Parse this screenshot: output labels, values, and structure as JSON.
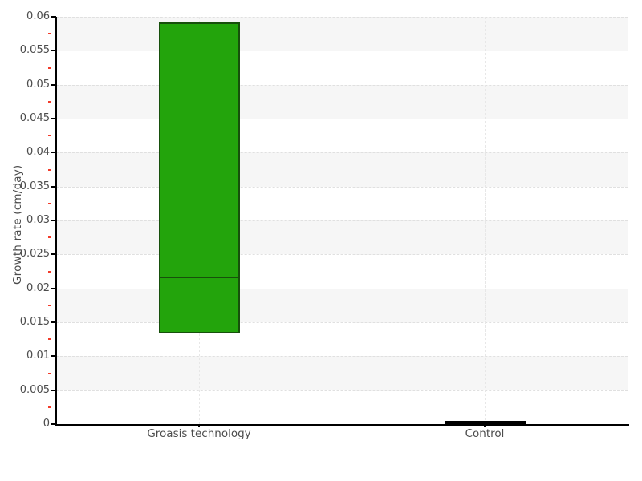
{
  "chart_data": {
    "type": "box",
    "title": "",
    "xlabel": "",
    "ylabel": "Growth rate (cm/day)",
    "ylim": [
      0,
      0.06
    ],
    "y_major_step": 0.005,
    "y_minor_step": 0.0025,
    "y_tick_labels": [
      "0",
      "0.005",
      "0.01",
      "0.015",
      "0.02",
      "0.025",
      "0.03",
      "0.035",
      "0.04",
      "0.045",
      "0.05",
      "0.055",
      "0.06"
    ],
    "categories": [
      "Groasis technology",
      "Control"
    ],
    "series": [
      {
        "category": "Groasis technology",
        "box_low": 0.0134,
        "box_high": 0.0592,
        "median": 0.0216,
        "fill": "#23a40c",
        "border": "#17500c"
      },
      {
        "category": "Control",
        "box_low": 0.0,
        "box_high": 0.0005,
        "median": 0.0002,
        "fill": "#000000",
        "border": "#000000"
      }
    ],
    "legend": null,
    "grid": "horizontal dashed lines every 0.005 with alternating light-gray bands; dashed vertical line at each category",
    "minor_tick_color": "#f23b2a"
  },
  "colors": {
    "background": "#ffffff",
    "band": "#f6f6f6",
    "gridline": "#e0e0e0",
    "axis": "#000000",
    "label_text": "#4c4c4c",
    "minor_tick": "#f23b2a",
    "box_fill_green": "#23a40c",
    "box_border_green": "#17500c",
    "control_bar": "#000000"
  }
}
